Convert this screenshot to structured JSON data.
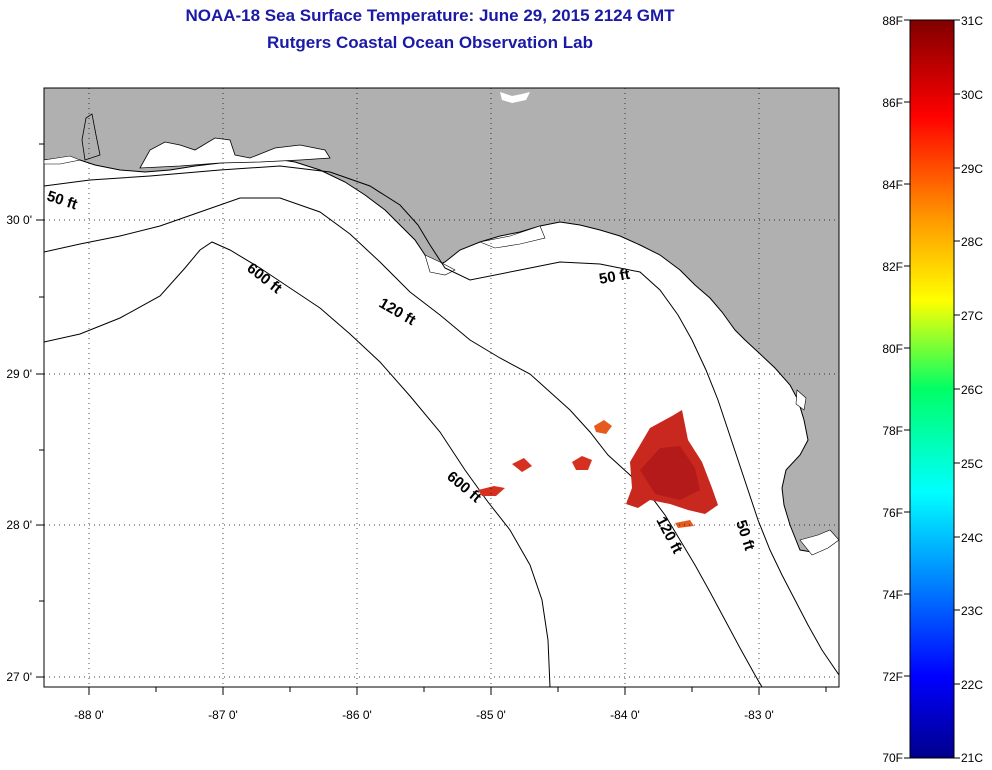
{
  "title": {
    "line1": "NOAA-18 Sea Surface Temperature:  June 29, 2015 2124 GMT",
    "line2": "Rutgers Coastal Ocean Observation Lab"
  },
  "map": {
    "lon_labels": [
      "-88 0'",
      "-87 0'",
      "-86 0'",
      "-85 0'",
      "-84 0'",
      "-83 0'"
    ],
    "lat_labels": [
      "30 0'",
      "29 0'",
      "28 0'",
      "27 0'"
    ],
    "depth_labels": {
      "d50_west": "50 ft",
      "d50_east": "50 ft",
      "d50_south": "50 ft",
      "d120_north": "120 ft",
      "d120_south": "120 ft",
      "d600_north": "600 ft",
      "d600_south": "600 ft"
    },
    "colors": {
      "land": "#b0b0b0",
      "water": "#ffffff",
      "contour": "#000000"
    }
  },
  "colorbar": {
    "fahrenheit_labels": [
      "88F",
      "86F",
      "84F",
      "82F",
      "80F",
      "78F",
      "76F",
      "74F",
      "72F",
      "70F"
    ],
    "celsius_labels": [
      "31C",
      "30C",
      "29C",
      "28C",
      "27C",
      "26C",
      "25C",
      "24C",
      "23C",
      "22C",
      "21C"
    ],
    "range_f": [
      70,
      88
    ],
    "range_c": [
      21,
      31
    ]
  }
}
